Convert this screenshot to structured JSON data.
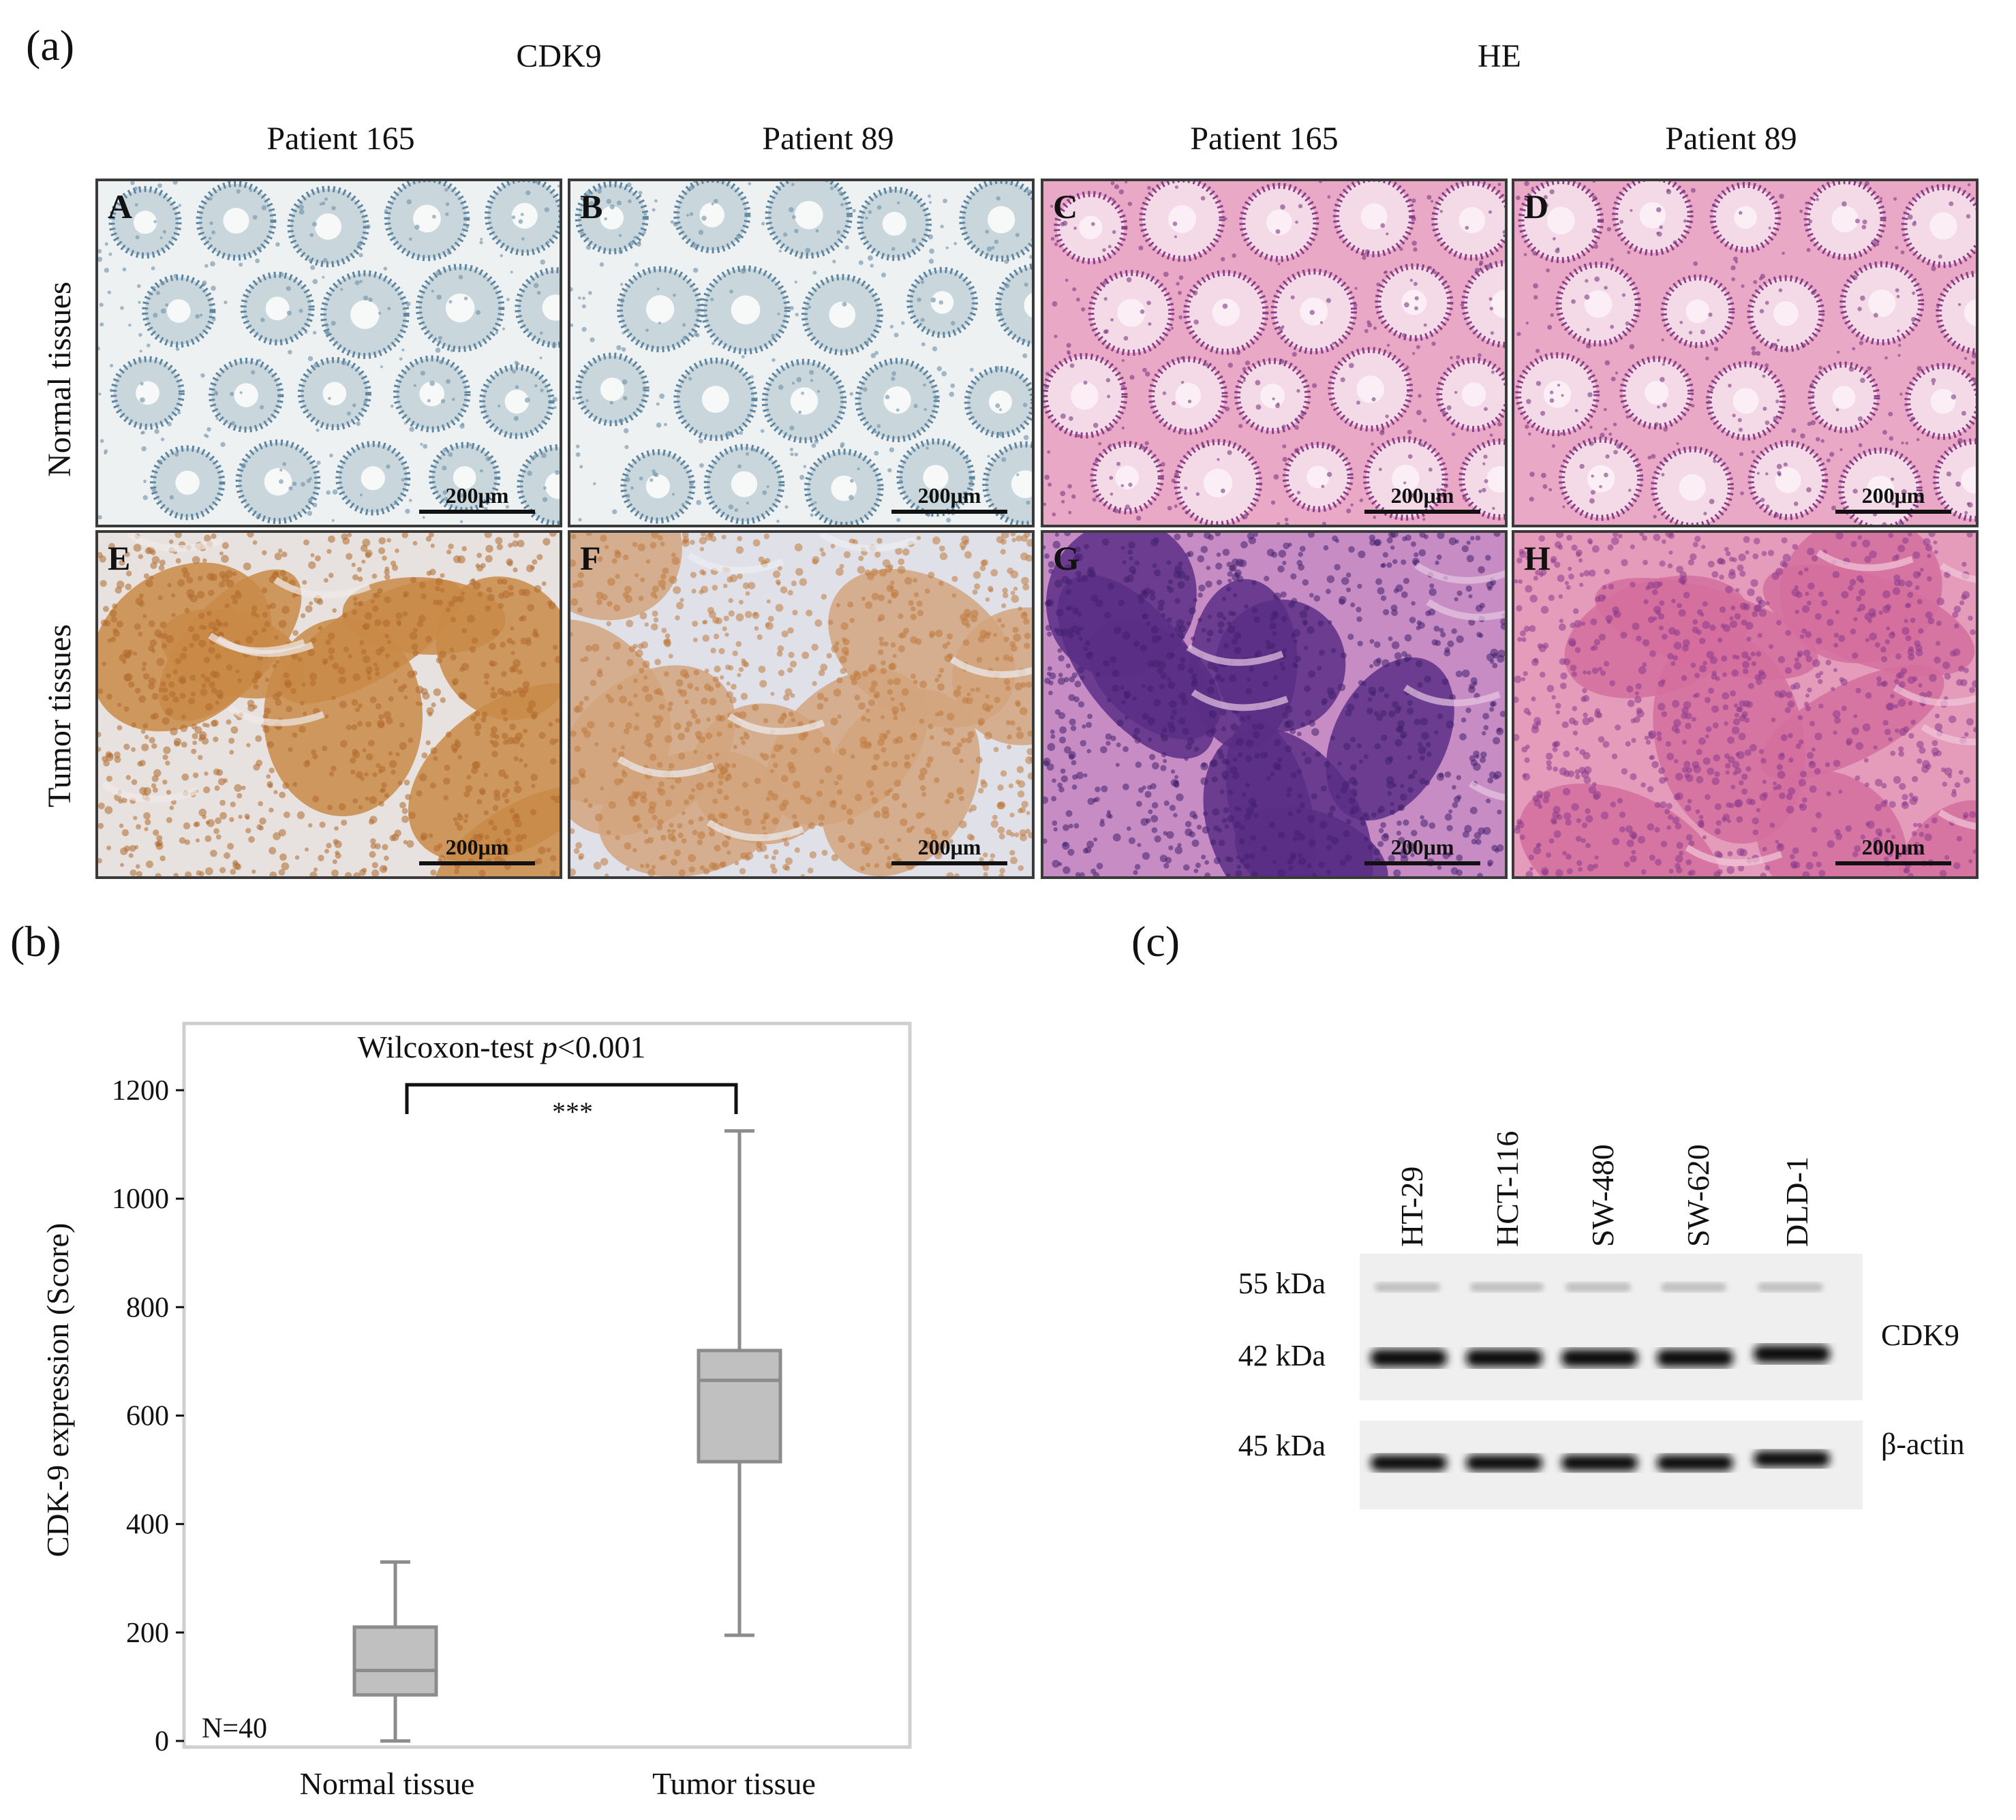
{
  "panel_a": {
    "letter": "(a)",
    "group_cdk9": "CDK9",
    "group_he": "HE",
    "columns": [
      "Patient 165",
      "Patient 89",
      "Patient 165",
      "Patient 89"
    ],
    "rows": [
      "Normal tissues",
      "Tumor  tissues"
    ],
    "tiles": [
      {
        "letter": "A",
        "scale": "200μm",
        "stain": "ihc-normal"
      },
      {
        "letter": "B",
        "scale": "200μm",
        "stain": "ihc-normal"
      },
      {
        "letter": "C",
        "scale": "200μm",
        "stain": "he-normal"
      },
      {
        "letter": "D",
        "scale": "200μm",
        "stain": "he-normal"
      },
      {
        "letter": "E",
        "scale": "200μm",
        "stain": "ihc-tumor"
      },
      {
        "letter": "F",
        "scale": "200μm",
        "stain": "ihc-tumor-light"
      },
      {
        "letter": "G",
        "scale": "200μm",
        "stain": "he-tumor"
      },
      {
        "letter": "H",
        "scale": "200μm",
        "stain": "he-tumor-light"
      }
    ]
  },
  "panel_b": {
    "letter": "(b)",
    "chart_data": {
      "type": "box",
      "title": "Wilcoxon-test p<0.001",
      "title_prefix": "Wilcoxon-test ",
      "title_italic": "p",
      "title_suffix": "<0.001",
      "significance": "***",
      "ylabel": "CDK-9 expression (Score)",
      "xlabel": "",
      "ylim": [
        0,
        1200
      ],
      "yticks": [
        0,
        200,
        400,
        600,
        800,
        1000,
        1200
      ],
      "ytick_labels": [
        "0",
        "200",
        "400",
        "600",
        "800",
        "1000",
        "1200"
      ],
      "categories": [
        "Normal tissue",
        "Tumor tissue"
      ],
      "boxes": [
        {
          "min": 0,
          "q1": 85,
          "median": 130,
          "q3": 210,
          "max": 330
        },
        {
          "min": 195,
          "q1": 515,
          "median": 665,
          "q3": 720,
          "max": 1125
        }
      ],
      "annotation": "N=40",
      "grid": false,
      "box_color": "#c0c0c0",
      "line_color": "#8c8c8c"
    }
  },
  "panel_c": {
    "letter": "(c)",
    "lanes": [
      "HT-29",
      "HCT-116",
      "SW-480",
      "SW-620",
      "DLD-1"
    ],
    "kda": [
      "55 kDa",
      "42 kDa",
      "45 kDa"
    ],
    "proteins": [
      "CDK9",
      "β-actin"
    ]
  }
}
